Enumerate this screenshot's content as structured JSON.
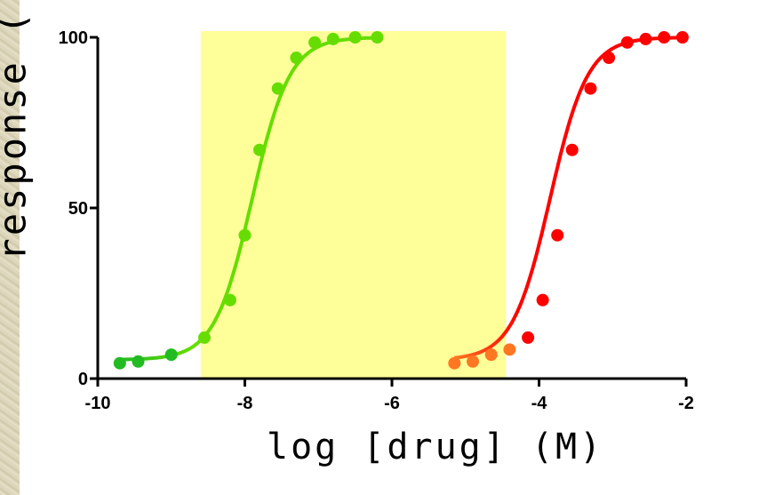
{
  "chart_data": {
    "type": "scatter",
    "xlabel": "log [drug] (M)",
    "ylabel": "response (",
    "xlim": [
      -10,
      -2
    ],
    "ylim": [
      0,
      100
    ],
    "x_ticks": [
      "-10",
      "-8",
      "-6",
      "-4",
      "-2"
    ],
    "y_ticks": [
      "0",
      "50",
      "100"
    ],
    "shaded_region": {
      "x": [
        -8.6,
        -4.45
      ],
      "color": "#ffff99"
    },
    "series": [
      {
        "color_start": "#22bb22",
        "color_end": "#66dd00",
        "x": [
          -9.7,
          -9.45,
          -9.0,
          -8.55,
          -8.2,
          -8.0,
          -7.8,
          -7.55,
          -7.3,
          -7.05,
          -6.8,
          -6.5,
          -6.2
        ],
        "y": [
          4.5,
          5,
          7,
          12,
          23,
          42,
          67,
          85,
          94,
          98.5,
          99.5,
          100,
          100
        ],
        "curve": {
          "bottom": 5.5,
          "top": 100,
          "logEC50": -7.9,
          "hill": 1.7,
          "x_from": -9.7,
          "x_to": -6.2
        }
      },
      {
        "color_start": "#ff7722",
        "color_end": "#ff0000",
        "x": [
          -5.15,
          -4.9,
          -4.65,
          -4.4,
          -4.15,
          -3.95,
          -3.75,
          -3.55,
          -3.3,
          -3.05,
          -2.8,
          -2.55,
          -2.3,
          -2.05
        ],
        "y": [
          4.5,
          5,
          7,
          8.5,
          12,
          23,
          42,
          67,
          85,
          94,
          98.5,
          99.5,
          100,
          100
        ],
        "curve": {
          "bottom": 5.5,
          "top": 100,
          "logEC50": -3.85,
          "hill": 1.7,
          "x_from": -5.15,
          "x_to": -2.05
        }
      }
    ]
  }
}
